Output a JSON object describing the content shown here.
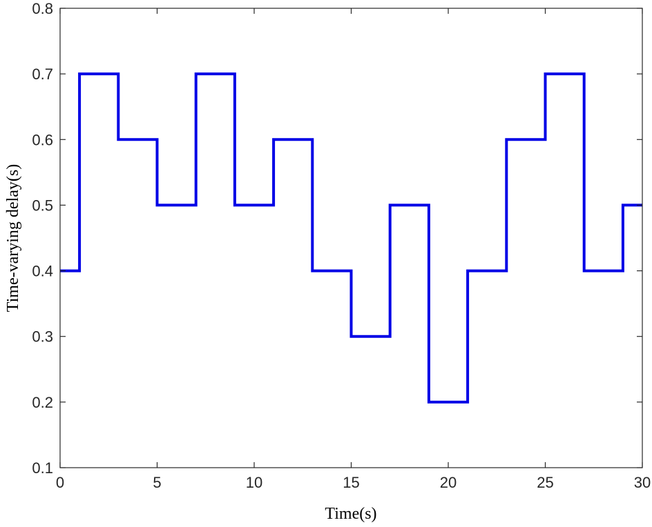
{
  "chart_data": {
    "type": "line",
    "title": "",
    "xlabel": "Time(s)",
    "ylabel": "Time-varying delay(s)",
    "xlim": [
      0,
      30
    ],
    "ylim": [
      0.1,
      0.8
    ],
    "xticks": [
      0,
      5,
      10,
      15,
      20,
      25,
      30
    ],
    "yticks": [
      0.1,
      0.2,
      0.3,
      0.4,
      0.5,
      0.6,
      0.7,
      0.8
    ],
    "xtick_labels": [
      "0",
      "5",
      "10",
      "15",
      "20",
      "25",
      "30"
    ],
    "ytick_labels": [
      "0.1",
      "0.2",
      "0.3",
      "0.4",
      "0.5",
      "0.6",
      "0.7",
      "0.8"
    ],
    "grid": false,
    "series": [
      {
        "color": "#0000e6",
        "step": true,
        "x": [
          0,
          1,
          3,
          5,
          7,
          9,
          11,
          13,
          15,
          17,
          19,
          21,
          23,
          25,
          27,
          29,
          30
        ],
        "y": [
          0.4,
          0.7,
          0.6,
          0.5,
          0.7,
          0.5,
          0.6,
          0.4,
          0.3,
          0.5,
          0.2,
          0.4,
          0.6,
          0.7,
          0.4,
          0.5,
          0.5
        ]
      }
    ]
  }
}
